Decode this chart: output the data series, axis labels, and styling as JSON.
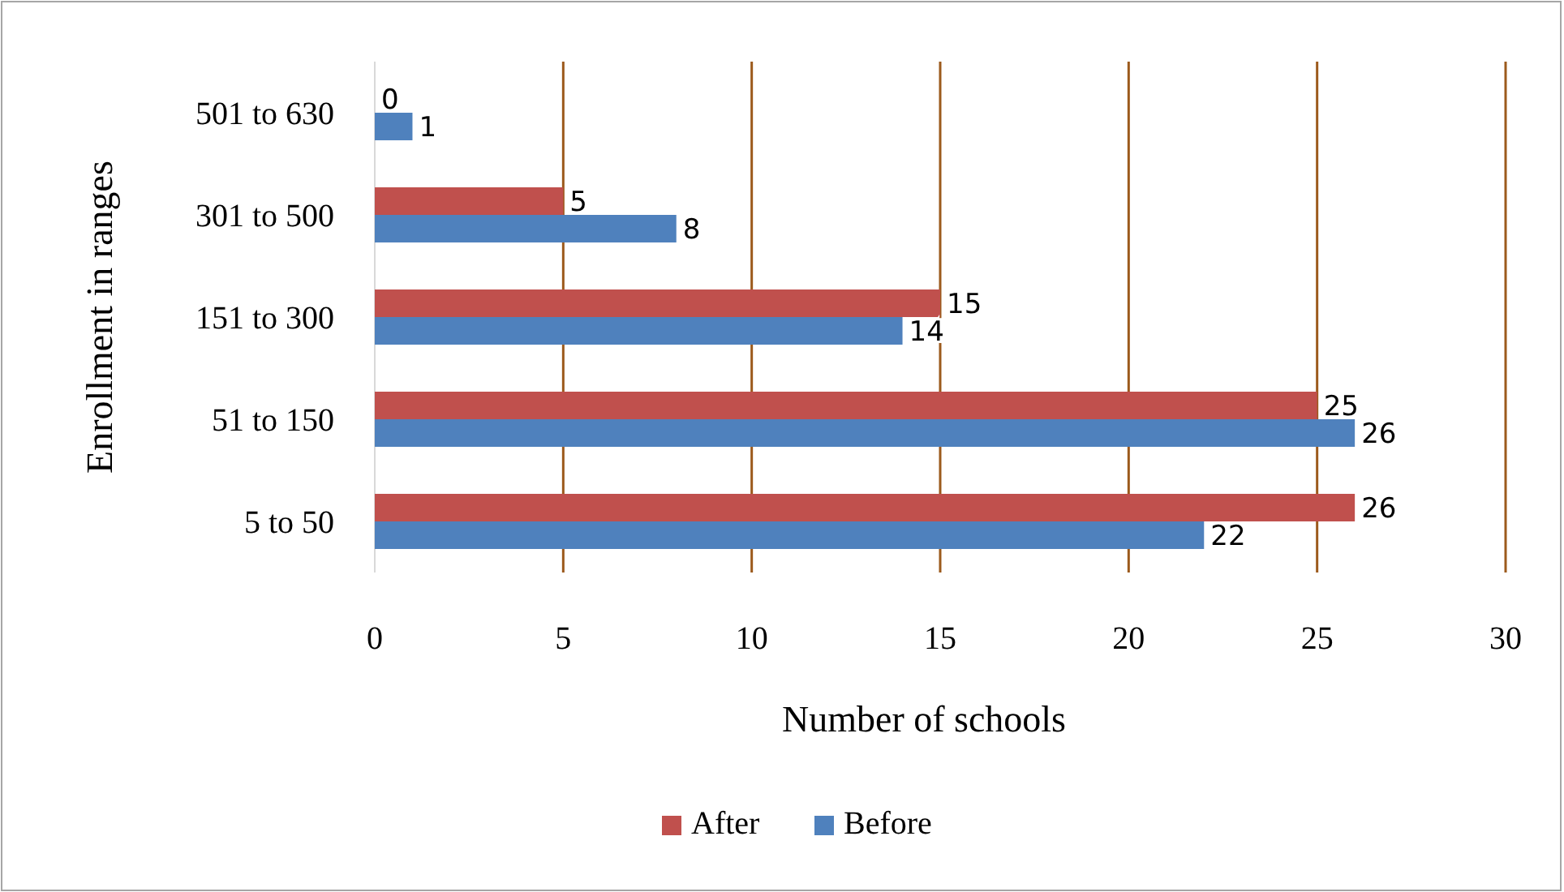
{
  "chart_data": {
    "type": "bar",
    "orientation": "horizontal",
    "xlabel": "Number of schools",
    "ylabel": "Enrollment in ranges",
    "categories": [
      "501 to 630",
      "301 to 500",
      "151 to 300",
      "51 to 150",
      "5 to 50"
    ],
    "series": [
      {
        "name": "After",
        "color": "#c0504d",
        "values": [
          0,
          5,
          15,
          25,
          26
        ]
      },
      {
        "name": "Before",
        "color": "#4f81bd",
        "values": [
          1,
          8,
          14,
          26,
          22
        ]
      }
    ],
    "xlim": [
      0,
      30
    ],
    "xticks": [
      0,
      5,
      10,
      15,
      20,
      25,
      30
    ],
    "grid": "x",
    "legend": "bottom",
    "data_labels": true
  }
}
